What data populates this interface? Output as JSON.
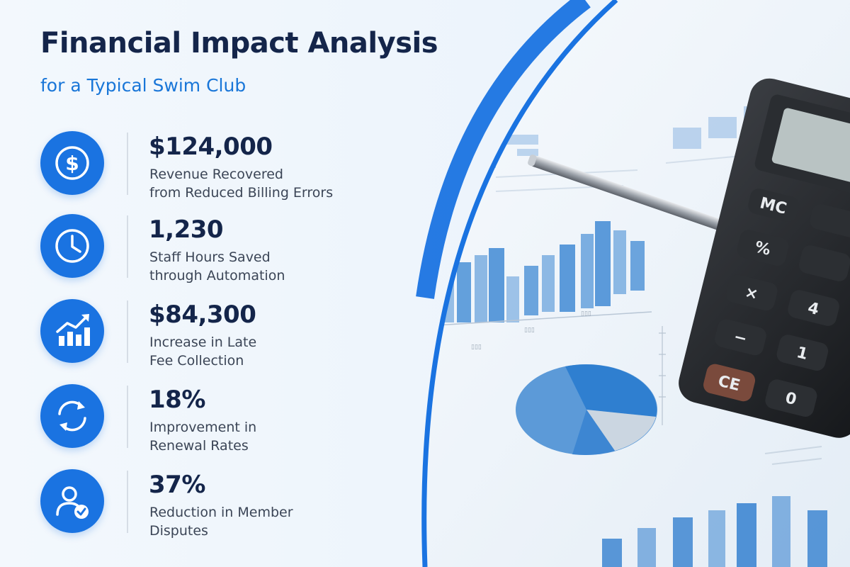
{
  "title": "Financial Impact Analysis",
  "subtitle": "for a Typical Swim Club",
  "accent_color": "#1a73e1",
  "stats": [
    {
      "icon": "dollar-icon",
      "value": "$124,000",
      "label_line1": "Revenue Recovered",
      "label_line2": "from Reduced Billing Errors"
    },
    {
      "icon": "clock-icon",
      "value": "1,230",
      "label_line1": "Staff Hours Saved",
      "label_line2": "through Automation"
    },
    {
      "icon": "growth-chart-icon",
      "value": "$84,300",
      "label_line1": "Increase in Late",
      "label_line2": "Fee Collection"
    },
    {
      "icon": "refresh-icon",
      "value": "18%",
      "label_line1": "Improvement in",
      "label_line2": "Renewal Rates"
    },
    {
      "icon": "user-check-icon",
      "value": "37%",
      "label_line1": "Reduction in Member",
      "label_line2": "Disputes"
    }
  ],
  "calculator_keys": [
    "MC",
    "%",
    "×",
    "−",
    "CE",
    "0",
    "1",
    "4"
  ]
}
